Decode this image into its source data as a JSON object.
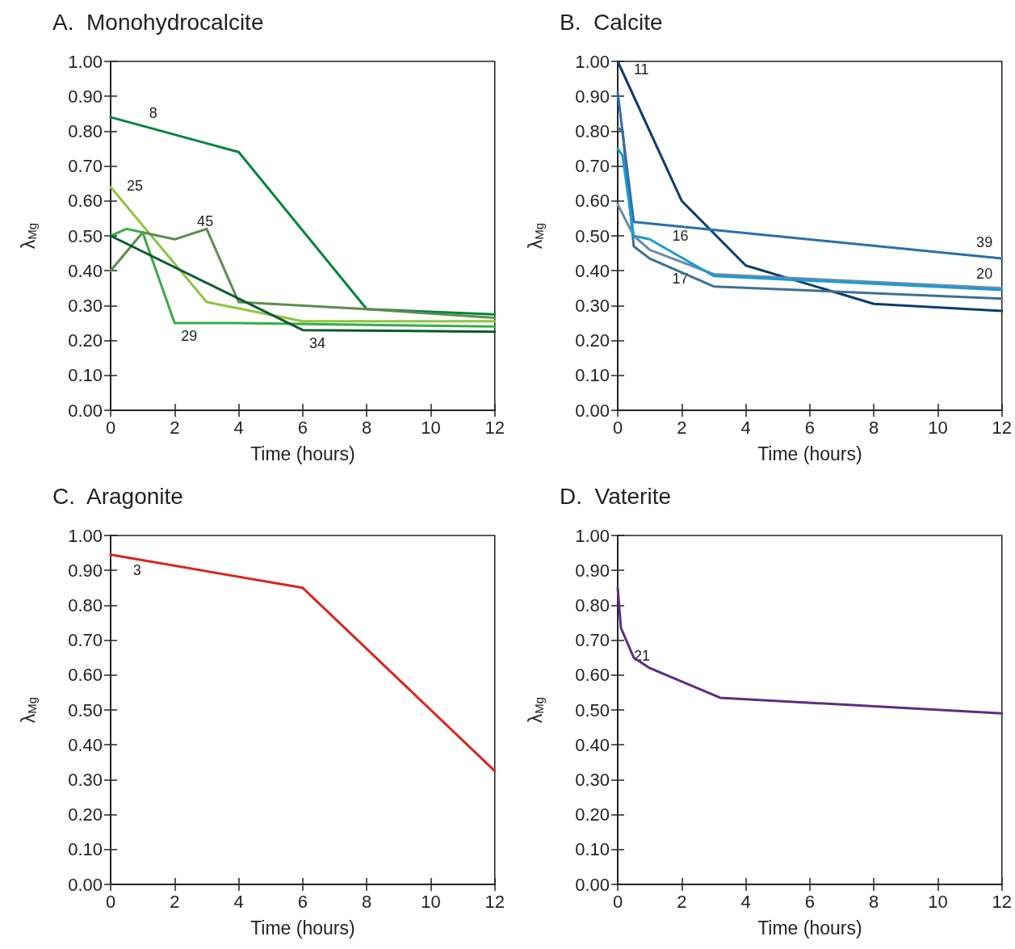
{
  "chart_data": [
    {
      "type": "line",
      "title": "A.  Monohydrocalcite",
      "xlabel": "Time (hours)",
      "ylabel": "λ$_{Mg}$",
      "xlim": [
        0,
        12
      ],
      "xticks": [
        0,
        2,
        4,
        6,
        8,
        10,
        12
      ],
      "ylim": [
        0,
        1
      ],
      "yticks": [
        {
          "value": 0,
          "label": "0.00"
        },
        {
          "value": 0.1,
          "label": "0.10"
        },
        {
          "value": 0.2,
          "label": "0.20"
        },
        {
          "value": 0.3,
          "label": "0.30"
        },
        {
          "value": 0.4,
          "label": "0.40"
        },
        {
          "value": 0.5,
          "label": "0.50"
        },
        {
          "value": 0.6,
          "label": "0.60"
        },
        {
          "value": 0.7,
          "label": "0.70"
        },
        {
          "value": 0.8,
          "label": "0.80"
        },
        {
          "value": 0.9,
          "label": "0.90"
        },
        {
          "value": 1,
          "label": "1.00"
        }
      ],
      "grid": false,
      "marker": "none",
      "line_style": "solid",
      "series": [
        {
          "color": "#00843d",
          "x": [
            0,
            4,
            8,
            12
          ],
          "values": [
            0.84,
            0.74,
            0.29,
            0.275
          ]
        },
        {
          "color": "#8dc63f",
          "x": [
            0,
            3,
            6,
            12
          ],
          "values": [
            0.64,
            0.31,
            0.255,
            0.255
          ]
        },
        {
          "color": "#5e8c4f",
          "x": [
            0,
            1,
            2,
            3,
            4,
            8,
            12
          ],
          "values": [
            0.4,
            0.51,
            0.49,
            0.52,
            0.31,
            0.29,
            0.265
          ]
        },
        {
          "color": "#3aaa48",
          "x": [
            0,
            0.5,
            1,
            2,
            4,
            12
          ],
          "values": [
            0.5,
            0.52,
            0.51,
            0.25,
            0.25,
            0.24
          ]
        },
        {
          "color": "#0a5a2e",
          "x": [
            0,
            6,
            12
          ],
          "values": [
            0.5,
            0.23,
            0.225
          ]
        }
      ],
      "annotations": [
        {
          "text": "8",
          "x": 1,
          "y": 0.815
        },
        {
          "text": "25",
          "x": 0.3,
          "y": 0.607
        },
        {
          "text": "45",
          "x": 2.5,
          "y": 0.505
        },
        {
          "text": "29",
          "x": 2,
          "y": 0.25
        },
        {
          "text": "34",
          "x": 6,
          "y": 0.23
        }
      ]
    },
    {
      "type": "line",
      "title": "B.  Calcite",
      "xlabel": "Time (hours)",
      "ylabel": "λ$_{Mg}$",
      "xlim": [
        0,
        12
      ],
      "xticks": [
        0,
        2,
        4,
        6,
        8,
        10,
        12
      ],
      "ylim": [
        0,
        1
      ],
      "yticks": [
        {
          "value": 0,
          "label": "0.00"
        },
        {
          "value": 0.1,
          "label": "0.10"
        },
        {
          "value": 0.2,
          "label": "0.20"
        },
        {
          "value": 0.3,
          "label": "0.30"
        },
        {
          "value": 0.4,
          "label": "0.40"
        },
        {
          "value": 0.5,
          "label": "0.50"
        },
        {
          "value": 0.6,
          "label": "0.60"
        },
        {
          "value": 0.7,
          "label": "0.70"
        },
        {
          "value": 0.8,
          "label": "0.80"
        },
        {
          "value": 0.9,
          "label": "0.90"
        },
        {
          "value": 1,
          "label": "1.00"
        }
      ],
      "grid": false,
      "marker": "none",
      "line_style": "solid",
      "series": [
        {
          "color": "#0d3c6e",
          "x": [
            0,
            2,
            4,
            8,
            12
          ],
          "values": [
            1.0,
            0.6,
            0.415,
            0.305,
            0.285
          ]
        },
        {
          "color": "#2a6eb0",
          "x": [
            0,
            0.5,
            12
          ],
          "values": [
            0.91,
            0.54,
            0.435
          ]
        },
        {
          "color": "#3f6f93",
          "x": [
            0,
            0.15,
            0.5,
            1,
            3,
            12
          ],
          "values": [
            0.81,
            0.8,
            0.47,
            0.435,
            0.355,
            0.32
          ]
        },
        {
          "color": "#6a8ca6",
          "x": [
            0,
            0.5,
            1,
            3,
            12
          ],
          "values": [
            0.59,
            0.5,
            0.46,
            0.39,
            0.35
          ]
        },
        {
          "color": "#1a9ad6",
          "x": [
            0,
            0.15,
            0.5,
            1,
            3,
            12
          ],
          "values": [
            0.75,
            0.73,
            0.5,
            0.49,
            0.385,
            0.345
          ]
        }
      ],
      "annotations": [
        {
          "text": "11",
          "x": 0.3,
          "y": 0.94
        },
        {
          "text": "16",
          "x": 1.5,
          "y": 0.464
        },
        {
          "text": "17",
          "x": 1.5,
          "y": 0.415
        },
        {
          "text": "39",
          "x": 11,
          "y": 0.444
        },
        {
          "text": "20",
          "x": 11,
          "y": 0.354
        }
      ]
    },
    {
      "type": "line",
      "title": "C.  Aragonite",
      "xlabel": "Time (hours)",
      "ylabel": "λ$_{Mg}$",
      "xlim": [
        0,
        12
      ],
      "xticks": [
        0,
        2,
        4,
        6,
        8,
        10,
        12
      ],
      "ylim": [
        0,
        1
      ],
      "yticks": [
        {
          "value": 0,
          "label": "0.00"
        },
        {
          "value": 0.1,
          "label": "0.10"
        },
        {
          "value": 0.2,
          "label": "0.20"
        },
        {
          "value": 0.3,
          "label": "0.30"
        },
        {
          "value": 0.4,
          "label": "0.40"
        },
        {
          "value": 0.5,
          "label": "0.50"
        },
        {
          "value": 0.6,
          "label": "0.60"
        },
        {
          "value": 0.7,
          "label": "0.70"
        },
        {
          "value": 0.8,
          "label": "0.80"
        },
        {
          "value": 0.9,
          "label": "0.90"
        },
        {
          "value": 1,
          "label": "1.00"
        }
      ],
      "grid": false,
      "marker": "none",
      "line_style": "solid",
      "series": [
        {
          "color": "#d7261e",
          "x": [
            0,
            6,
            12
          ],
          "values": [
            0.945,
            0.85,
            0.325
          ]
        }
      ],
      "annotations": [
        {
          "text": "3",
          "x": 0.5,
          "y": 0.937
        }
      ]
    },
    {
      "type": "line",
      "title": "D.  Vaterite",
      "xlabel": "Time (hours)",
      "ylabel": "λ$_{Mg}$",
      "xlim": [
        0,
        12
      ],
      "xticks": [
        0,
        2,
        4,
        6,
        8,
        10,
        12
      ],
      "ylim": [
        0,
        1
      ],
      "yticks": [
        {
          "value": 0,
          "label": "0.00"
        },
        {
          "value": 0.1,
          "label": "0.10"
        },
        {
          "value": 0.2,
          "label": "0.20"
        },
        {
          "value": 0.3,
          "label": "0.30"
        },
        {
          "value": 0.4,
          "label": "0.40"
        },
        {
          "value": 0.5,
          "label": "0.50"
        },
        {
          "value": 0.6,
          "label": "0.60"
        },
        {
          "value": 0.7,
          "label": "0.70"
        },
        {
          "value": 0.8,
          "label": "0.80"
        },
        {
          "value": 0.9,
          "label": "0.90"
        },
        {
          "value": 1,
          "label": "1.00"
        }
      ],
      "grid": false,
      "marker": "none",
      "line_style": "solid",
      "series": [
        {
          "color": "#5a2d82",
          "x": [
            0,
            0.1,
            0.5,
            1,
            3.2,
            12
          ],
          "values": [
            0.85,
            0.735,
            0.65,
            0.62,
            0.535,
            0.49
          ]
        }
      ],
      "annotations": [
        {
          "text": "21",
          "x": 0.3,
          "y": 0.6925
        }
      ]
    }
  ]
}
